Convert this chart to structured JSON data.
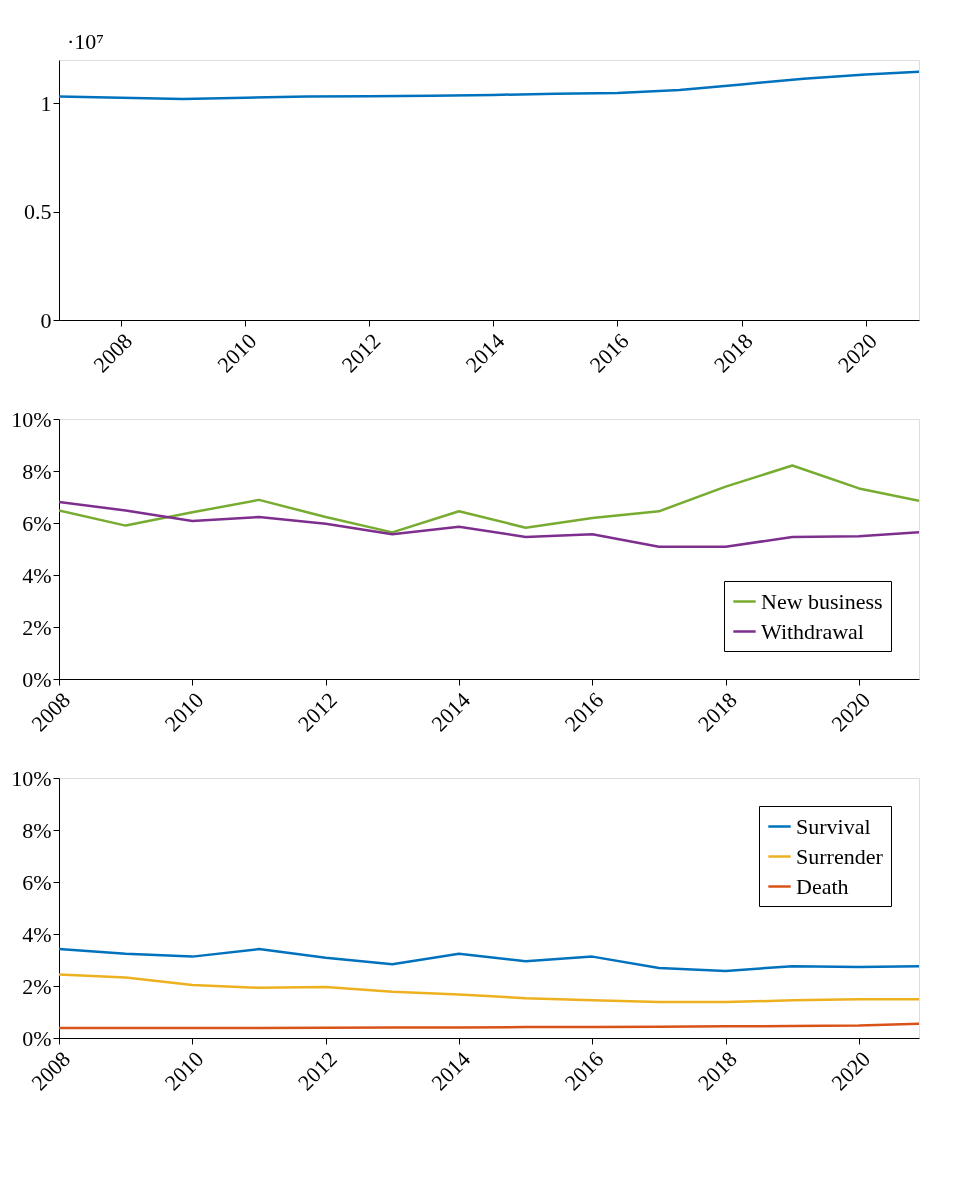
{
  "chart_data": [
    {
      "type": "line",
      "annotations": [
        "·10⁷"
      ],
      "legend": false,
      "xlim": [
        2007,
        2020.86
      ],
      "xticks": [
        2008,
        2010,
        2012,
        2014,
        2016,
        2018,
        2020
      ],
      "ylim": [
        0,
        1.2
      ],
      "yticks": [
        0,
        0.5,
        1
      ],
      "series": [
        {
          "color": "#0072bd",
          "x": [
            2007,
            2008,
            2009,
            2010,
            2011,
            2012,
            2013,
            2014,
            2015,
            2016,
            2017,
            2018,
            2019,
            2020,
            2020.86
          ],
          "values": [
            1.031,
            1.026,
            1.02,
            1.026,
            1.031,
            1.033,
            1.035,
            1.039,
            1.044,
            1.048,
            1.061,
            1.087,
            1.114,
            1.133,
            1.146
          ]
        }
      ]
    },
    {
      "type": "line",
      "legend": "bottom right",
      "xlim": [
        2008,
        2020.9
      ],
      "xticks": [
        2008,
        2010,
        2012,
        2014,
        2016,
        2018,
        2020
      ],
      "ylim": [
        0,
        10
      ],
      "yticks": [
        {
          "value": 0,
          "label": "0%"
        },
        {
          "value": 2,
          "label": "2%"
        },
        {
          "value": 4,
          "label": "4%"
        },
        {
          "value": 6,
          "label": "6%"
        },
        {
          "value": 8,
          "label": "8%"
        },
        {
          "value": 10,
          "label": "10%"
        }
      ],
      "series": [
        {
          "name": "New business",
          "color": "#77ac30",
          "x": [
            2008,
            2009,
            2010,
            2011,
            2012,
            2013,
            2014,
            2015,
            2016,
            2017,
            2018,
            2019,
            2020,
            2020.9
          ],
          "values": [
            6.48,
            5.9,
            6.41,
            6.89,
            6.23,
            5.64,
            6.45,
            5.82,
            6.19,
            6.45,
            7.4,
            8.21,
            7.33,
            6.85
          ]
        },
        {
          "name": "Withdrawal",
          "color": "#7e2f8e",
          "x": [
            2008,
            2009,
            2010,
            2011,
            2012,
            2013,
            2014,
            2015,
            2016,
            2017,
            2018,
            2019,
            2020,
            2020.9
          ],
          "values": [
            6.81,
            6.48,
            6.08,
            6.23,
            5.97,
            5.57,
            5.86,
            5.46,
            5.57,
            5.09,
            5.09,
            5.46,
            5.49,
            5.64
          ]
        }
      ]
    },
    {
      "type": "line",
      "legend": "top right",
      "xlim": [
        2008,
        2020.9
      ],
      "xticks": [
        2008,
        2010,
        2012,
        2014,
        2016,
        2018,
        2020
      ],
      "ylim": [
        0,
        10
      ],
      "yticks": [
        {
          "value": 0,
          "label": "0%"
        },
        {
          "value": 2,
          "label": "2%"
        },
        {
          "value": 4,
          "label": "4%"
        },
        {
          "value": 6,
          "label": "6%"
        },
        {
          "value": 8,
          "label": "8%"
        },
        {
          "value": 10,
          "label": "10%"
        }
      ],
      "series": [
        {
          "name": "Survival",
          "color": "#0072bd",
          "x": [
            2008,
            2009,
            2010,
            2011,
            2012,
            2013,
            2014,
            2015,
            2016,
            2017,
            2018,
            2019,
            2020,
            2020.9
          ],
          "values": [
            3.42,
            3.24,
            3.13,
            3.42,
            3.09,
            2.84,
            3.24,
            2.95,
            3.13,
            2.69,
            2.58,
            2.76,
            2.73,
            2.76
          ]
        },
        {
          "name": "Surrender",
          "color": "#edb120",
          "x": [
            2008,
            2009,
            2010,
            2011,
            2012,
            2013,
            2014,
            2015,
            2016,
            2017,
            2018,
            2019,
            2020,
            2020.9
          ],
          "values": [
            2.44,
            2.33,
            2.04,
            1.93,
            1.96,
            1.78,
            1.67,
            1.53,
            1.45,
            1.38,
            1.38,
            1.45,
            1.49,
            1.49
          ]
        },
        {
          "name": "Death",
          "color": "#d95319",
          "x": [
            2008,
            2009,
            2010,
            2011,
            2012,
            2013,
            2014,
            2015,
            2016,
            2017,
            2018,
            2019,
            2020,
            2020.9
          ],
          "values": [
            0.38,
            0.38,
            0.38,
            0.38,
            0.39,
            0.4,
            0.4,
            0.42,
            0.42,
            0.43,
            0.45,
            0.46,
            0.48,
            0.55
          ]
        }
      ]
    }
  ]
}
